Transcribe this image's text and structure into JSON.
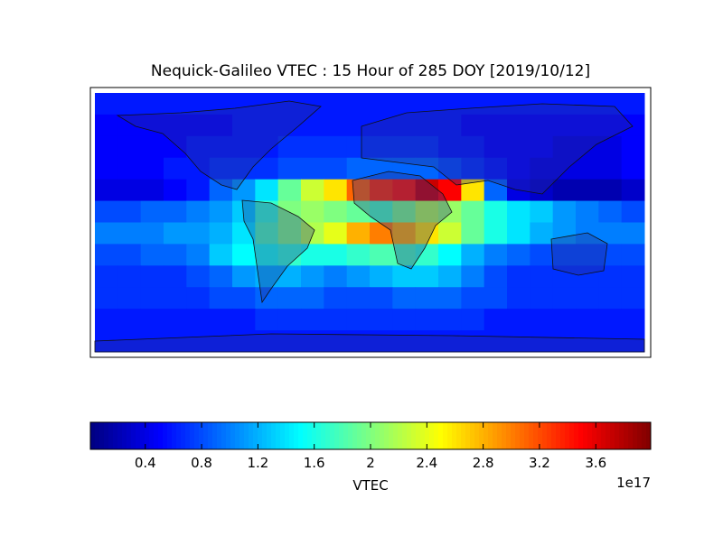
{
  "chart_data": {
    "type": "heatmap",
    "title": "Nequick-Galileo VTEC : 15 Hour of 285 DOY [2019/10/12]",
    "colorbar_label": "VTEC",
    "colorbar_offset": "1e17",
    "colormap": "jet",
    "clim": [
      0.01,
      3.99
    ],
    "cticks": [
      0.4,
      0.8,
      1.2,
      1.6,
      2.0,
      2.4,
      2.8,
      3.2,
      3.6
    ],
    "z": [
      [
        0.6,
        0.6,
        0.6,
        0.6,
        0.6,
        0.6,
        0.6,
        0.6,
        0.6,
        0.6,
        0.6,
        0.6,
        0.6,
        0.6,
        0.6,
        0.6,
        0.6,
        0.6,
        0.6,
        0.6,
        0.6,
        0.6,
        0.6,
        0.6
      ],
      [
        0.5,
        0.5,
        0.5,
        0.5,
        0.5,
        0.5,
        0.6,
        0.6,
        0.6,
        0.6,
        0.6,
        0.6,
        0.6,
        0.6,
        0.6,
        0.6,
        0.5,
        0.5,
        0.5,
        0.5,
        0.5,
        0.5,
        0.5,
        0.5
      ],
      [
        0.5,
        0.5,
        0.5,
        0.5,
        0.6,
        0.6,
        0.6,
        0.6,
        0.7,
        0.7,
        0.7,
        0.7,
        0.7,
        0.7,
        0.7,
        0.6,
        0.6,
        0.5,
        0.5,
        0.5,
        0.4,
        0.4,
        0.4,
        0.5
      ],
      [
        0.5,
        0.5,
        0.5,
        0.6,
        0.6,
        0.7,
        0.7,
        0.7,
        0.8,
        0.8,
        0.8,
        0.9,
        0.9,
        0.9,
        0.9,
        0.8,
        0.7,
        0.6,
        0.5,
        0.4,
        0.4,
        0.4,
        0.4,
        0.5
      ],
      [
        0.4,
        0.4,
        0.4,
        0.5,
        0.6,
        0.9,
        1.1,
        1.4,
        1.9,
        2.3,
        2.6,
        3.1,
        3.3,
        3.4,
        3.7,
        3.5,
        2.6,
        0.9,
        0.4,
        0.3,
        0.2,
        0.2,
        0.2,
        0.3
      ],
      [
        0.8,
        0.8,
        0.9,
        0.9,
        1.0,
        1.1,
        1.3,
        1.7,
        2.0,
        2.1,
        2.0,
        1.9,
        1.8,
        2.0,
        2.2,
        2.1,
        1.9,
        1.6,
        1.4,
        1.3,
        1.1,
        1.0,
        0.9,
        0.8
      ],
      [
        1.0,
        1.0,
        1.0,
        1.1,
        1.1,
        1.2,
        1.4,
        1.8,
        2.0,
        2.2,
        2.4,
        2.8,
        3.0,
        2.8,
        2.6,
        2.3,
        1.9,
        1.6,
        1.4,
        1.2,
        1.1,
        1.0,
        1.0,
        1.0
      ],
      [
        0.8,
        0.8,
        0.9,
        0.9,
        1.0,
        1.3,
        1.5,
        1.6,
        1.7,
        1.6,
        1.6,
        1.7,
        1.8,
        1.8,
        1.7,
        1.5,
        1.2,
        1.0,
        0.9,
        0.8,
        0.8,
        0.8,
        0.8,
        0.8
      ],
      [
        0.7,
        0.7,
        0.7,
        0.7,
        0.8,
        0.9,
        1.1,
        1.2,
        1.2,
        1.1,
        1.0,
        1.1,
        1.2,
        1.3,
        1.3,
        1.2,
        1.0,
        0.8,
        0.7,
        0.7,
        0.7,
        0.7,
        0.7,
        0.7
      ],
      [
        0.7,
        0.7,
        0.7,
        0.7,
        0.7,
        0.8,
        0.8,
        0.9,
        0.9,
        0.9,
        0.8,
        0.8,
        0.8,
        0.9,
        0.9,
        0.9,
        0.8,
        0.8,
        0.7,
        0.7,
        0.7,
        0.7,
        0.7,
        0.7
      ],
      [
        0.6,
        0.6,
        0.6,
        0.6,
        0.6,
        0.6,
        0.6,
        0.7,
        0.7,
        0.7,
        0.7,
        0.7,
        0.7,
        0.7,
        0.7,
        0.7,
        0.7,
        0.6,
        0.6,
        0.6,
        0.6,
        0.6,
        0.6,
        0.6
      ],
      [
        0.6,
        0.6,
        0.6,
        0.6,
        0.6,
        0.6,
        0.6,
        0.6,
        0.6,
        0.6,
        0.6,
        0.6,
        0.6,
        0.6,
        0.6,
        0.6,
        0.6,
        0.6,
        0.6,
        0.6,
        0.6,
        0.6,
        0.6,
        0.6
      ]
    ]
  }
}
